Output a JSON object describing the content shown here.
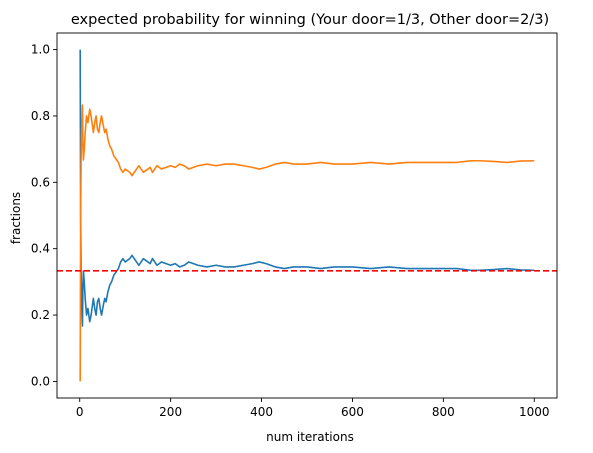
{
  "chart_data": {
    "type": "line",
    "title": "expected probability for winning (Your door=1/3, Other door=2/3)",
    "xlabel": "num iterations",
    "ylabel": "fractions",
    "xlim": [
      -50,
      1050
    ],
    "ylim": [
      -0.05,
      1.05
    ],
    "xticks": [
      0,
      200,
      400,
      600,
      800,
      1000
    ],
    "yticks": [
      0.0,
      0.2,
      0.4,
      0.6,
      0.8,
      1.0
    ],
    "xtick_labels": [
      "0",
      "200",
      "400",
      "600",
      "800",
      "1000"
    ],
    "ytick_labels": [
      "0.0",
      "0.2",
      "0.4",
      "0.6",
      "0.8",
      "1.0"
    ],
    "grid": false,
    "legend": "none",
    "reference_line": {
      "y": 0.3333,
      "color": "#ff0000",
      "style": "dashed"
    },
    "series": [
      {
        "color": "#1f77b4",
        "points": [
          [
            1,
            1.0
          ],
          [
            2,
            0.5
          ],
          [
            3,
            0.333
          ],
          [
            4,
            0.25
          ],
          [
            5,
            0.2
          ],
          [
            6,
            0.167
          ],
          [
            7,
            0.286
          ],
          [
            8,
            0.333
          ],
          [
            10,
            0.3
          ],
          [
            12,
            0.25
          ],
          [
            15,
            0.2
          ],
          [
            18,
            0.22
          ],
          [
            20,
            0.2
          ],
          [
            22,
            0.18
          ],
          [
            25,
            0.2
          ],
          [
            28,
            0.23
          ],
          [
            30,
            0.25
          ],
          [
            33,
            0.22
          ],
          [
            36,
            0.2
          ],
          [
            39,
            0.24
          ],
          [
            42,
            0.25
          ],
          [
            45,
            0.22
          ],
          [
            48,
            0.2
          ],
          [
            52,
            0.23
          ],
          [
            55,
            0.25
          ],
          [
            58,
            0.24
          ],
          [
            62,
            0.27
          ],
          [
            66,
            0.29
          ],
          [
            70,
            0.3
          ],
          [
            75,
            0.32
          ],
          [
            80,
            0.33
          ],
          [
            85,
            0.34
          ],
          [
            90,
            0.36
          ],
          [
            95,
            0.37
          ],
          [
            100,
            0.36
          ],
          [
            105,
            0.365
          ],
          [
            110,
            0.37
          ],
          [
            115,
            0.38
          ],
          [
            120,
            0.37
          ],
          [
            125,
            0.36
          ],
          [
            130,
            0.35
          ],
          [
            135,
            0.36
          ],
          [
            140,
            0.37
          ],
          [
            145,
            0.365
          ],
          [
            150,
            0.36
          ],
          [
            155,
            0.355
          ],
          [
            160,
            0.37
          ],
          [
            165,
            0.36
          ],
          [
            170,
            0.35
          ],
          [
            175,
            0.355
          ],
          [
            180,
            0.36
          ],
          [
            190,
            0.355
          ],
          [
            200,
            0.35
          ],
          [
            210,
            0.355
          ],
          [
            220,
            0.345
          ],
          [
            230,
            0.35
          ],
          [
            240,
            0.36
          ],
          [
            250,
            0.355
          ],
          [
            260,
            0.35
          ],
          [
            280,
            0.345
          ],
          [
            300,
            0.35
          ],
          [
            320,
            0.345
          ],
          [
            340,
            0.345
          ],
          [
            360,
            0.35
          ],
          [
            380,
            0.355
          ],
          [
            395,
            0.36
          ],
          [
            410,
            0.355
          ],
          [
            430,
            0.345
          ],
          [
            450,
            0.34
          ],
          [
            470,
            0.345
          ],
          [
            500,
            0.345
          ],
          [
            530,
            0.34
          ],
          [
            560,
            0.345
          ],
          [
            600,
            0.345
          ],
          [
            640,
            0.34
          ],
          [
            680,
            0.345
          ],
          [
            720,
            0.34
          ],
          [
            760,
            0.34
          ],
          [
            800,
            0.34
          ],
          [
            830,
            0.34
          ],
          [
            860,
            0.335
          ],
          [
            880,
            0.335
          ],
          [
            910,
            0.337
          ],
          [
            940,
            0.34
          ],
          [
            970,
            0.336
          ],
          [
            1000,
            0.335
          ]
        ]
      },
      {
        "color": "#ff7f0e",
        "points": [
          [
            1,
            0.0
          ],
          [
            2,
            0.5
          ],
          [
            3,
            0.667
          ],
          [
            4,
            0.75
          ],
          [
            5,
            0.8
          ],
          [
            6,
            0.833
          ],
          [
            7,
            0.714
          ],
          [
            8,
            0.667
          ],
          [
            10,
            0.7
          ],
          [
            12,
            0.75
          ],
          [
            15,
            0.8
          ],
          [
            18,
            0.78
          ],
          [
            20,
            0.8
          ],
          [
            22,
            0.82
          ],
          [
            25,
            0.8
          ],
          [
            28,
            0.77
          ],
          [
            30,
            0.75
          ],
          [
            33,
            0.78
          ],
          [
            36,
            0.8
          ],
          [
            39,
            0.76
          ],
          [
            42,
            0.75
          ],
          [
            45,
            0.78
          ],
          [
            48,
            0.8
          ],
          [
            52,
            0.77
          ],
          [
            55,
            0.75
          ],
          [
            58,
            0.76
          ],
          [
            62,
            0.73
          ],
          [
            66,
            0.71
          ],
          [
            70,
            0.7
          ],
          [
            75,
            0.68
          ],
          [
            80,
            0.67
          ],
          [
            85,
            0.66
          ],
          [
            90,
            0.64
          ],
          [
            95,
            0.63
          ],
          [
            100,
            0.64
          ],
          [
            105,
            0.635
          ],
          [
            110,
            0.63
          ],
          [
            115,
            0.62
          ],
          [
            120,
            0.63
          ],
          [
            125,
            0.64
          ],
          [
            130,
            0.65
          ],
          [
            135,
            0.64
          ],
          [
            140,
            0.63
          ],
          [
            145,
            0.635
          ],
          [
            150,
            0.64
          ],
          [
            155,
            0.645
          ],
          [
            160,
            0.63
          ],
          [
            165,
            0.64
          ],
          [
            170,
            0.65
          ],
          [
            175,
            0.645
          ],
          [
            180,
            0.64
          ],
          [
            190,
            0.645
          ],
          [
            200,
            0.65
          ],
          [
            210,
            0.645
          ],
          [
            220,
            0.655
          ],
          [
            230,
            0.65
          ],
          [
            240,
            0.64
          ],
          [
            250,
            0.645
          ],
          [
            260,
            0.65
          ],
          [
            280,
            0.655
          ],
          [
            300,
            0.65
          ],
          [
            320,
            0.655
          ],
          [
            340,
            0.655
          ],
          [
            360,
            0.65
          ],
          [
            380,
            0.645
          ],
          [
            395,
            0.64
          ],
          [
            410,
            0.645
          ],
          [
            430,
            0.655
          ],
          [
            450,
            0.66
          ],
          [
            470,
            0.655
          ],
          [
            500,
            0.655
          ],
          [
            530,
            0.66
          ],
          [
            560,
            0.655
          ],
          [
            600,
            0.655
          ],
          [
            640,
            0.66
          ],
          [
            680,
            0.655
          ],
          [
            720,
            0.66
          ],
          [
            760,
            0.66
          ],
          [
            800,
            0.66
          ],
          [
            830,
            0.66
          ],
          [
            860,
            0.665
          ],
          [
            880,
            0.665
          ],
          [
            910,
            0.663
          ],
          [
            940,
            0.66
          ],
          [
            970,
            0.664
          ],
          [
            1000,
            0.665
          ]
        ]
      }
    ]
  }
}
